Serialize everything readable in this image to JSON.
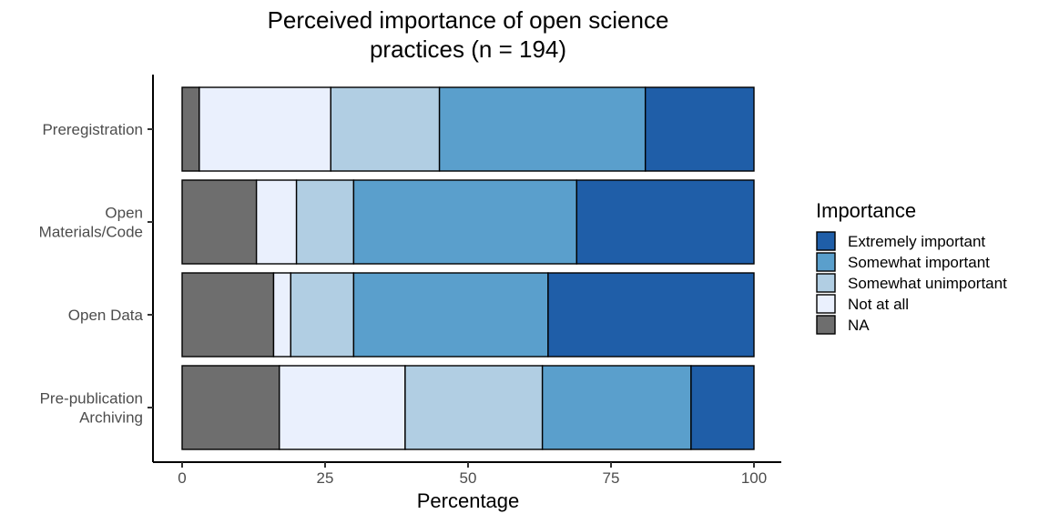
{
  "chart_data": {
    "type": "bar",
    "orientation": "horizontal",
    "stacked": true,
    "title": "Perceived importance of open science practices (n = 194)",
    "title_lines": [
      "Perceived importance of open science",
      "practices (n = 194)"
    ],
    "xlabel": "Percentage",
    "ylabel": "",
    "xlim": [
      0,
      100
    ],
    "xticks": [
      "0",
      "25",
      "50",
      "75",
      "100"
    ],
    "categories": [
      "Preregistration",
      "Open Materials/Code",
      "Open Data",
      "Pre-publication Archiving"
    ],
    "category_label_lines": [
      [
        "Preregistration"
      ],
      [
        "Open",
        "Materials/Code"
      ],
      [
        "Open Data"
      ],
      [
        "Pre-publication",
        "Archiving"
      ]
    ],
    "stack_order": [
      "NA",
      "Not at all",
      "Somewhat unimportant",
      "Somewhat important",
      "Extremely important"
    ],
    "series": [
      {
        "name": "NA",
        "color": "#6e6e6e",
        "values": [
          3,
          13,
          16,
          17
        ]
      },
      {
        "name": "Not at all",
        "color": "#eaf0fd",
        "values": [
          23,
          7,
          3,
          22
        ]
      },
      {
        "name": "Somewhat unimportant",
        "color": "#b1cee3",
        "values": [
          19,
          10,
          11,
          24
        ]
      },
      {
        "name": "Somewhat important",
        "color": "#5a9fcc",
        "values": [
          36,
          39,
          34,
          26
        ]
      },
      {
        "name": "Extremely important",
        "color": "#1f5ea8",
        "values": [
          19,
          31,
          36,
          11
        ]
      }
    ],
    "legend": {
      "title": "Importance",
      "position": "right",
      "order": [
        "Extremely important",
        "Somewhat important",
        "Somewhat unimportant",
        "Not at all",
        "NA"
      ]
    },
    "grid": false
  }
}
